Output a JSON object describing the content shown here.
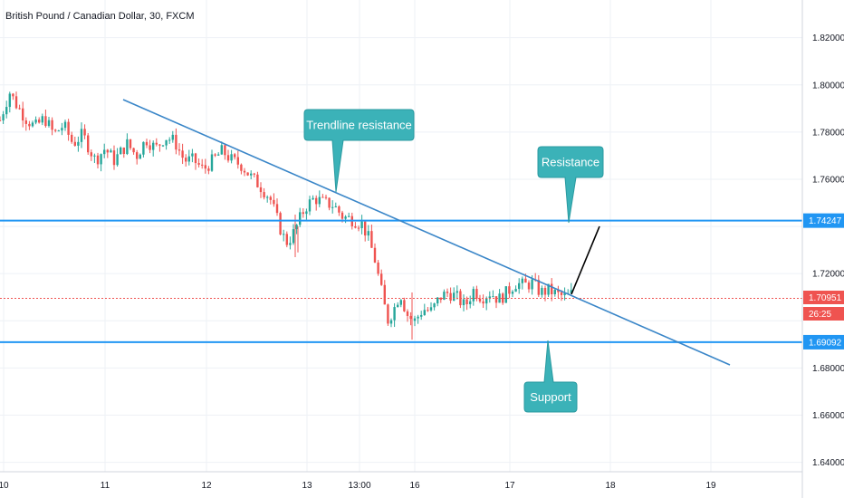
{
  "header": {
    "title": "British Pound / Canadian Dollar, 30, FXCM"
  },
  "colors": {
    "up": "#26a69a",
    "down": "#ef5350",
    "level": "#2196f3",
    "trend": "#3a86c8",
    "callout": "#3bb2b8",
    "grid": "#eef1f6"
  },
  "chart_data": {
    "type": "candlestick",
    "title": "British Pound / Canadian Dollar, 30, FXCM",
    "xlabel": "",
    "ylabel": "",
    "x_ticks": [
      "10",
      "11",
      "12",
      "13",
      "13:00",
      "16",
      "17",
      "18",
      "19"
    ],
    "y_ticks": [
      "1.82000",
      "1.80000",
      "1.78000",
      "1.76000",
      "1.72000",
      "1.68000",
      "1.66000",
      "1.64000"
    ],
    "ylim": [
      1.636,
      1.836
    ],
    "xlim": [
      0,
      13.5
    ],
    "grid": true,
    "price_path": [
      [
        0,
        1.785
      ],
      [
        0.3,
        1.797
      ],
      [
        0.5,
        1.792
      ],
      [
        0.8,
        1.786
      ],
      [
        1.1,
        1.782
      ],
      [
        1.4,
        1.786
      ],
      [
        1.7,
        1.779
      ],
      [
        2.0,
        1.783
      ],
      [
        2.3,
        1.775
      ],
      [
        2.6,
        1.779
      ],
      [
        3.0,
        1.768
      ],
      [
        3.3,
        1.773
      ],
      [
        3.6,
        1.768
      ],
      [
        4.0,
        1.775
      ],
      [
        4.3,
        1.77
      ],
      [
        4.6,
        1.777
      ],
      [
        4.9,
        1.773
      ],
      [
        5.2,
        1.778
      ],
      [
        5.5,
        1.776
      ],
      [
        5.8,
        1.768
      ],
      [
        6.1,
        1.768
      ],
      [
        6.4,
        1.764
      ],
      [
        6.7,
        1.768
      ],
      [
        7.0,
        1.772
      ],
      [
        7.3,
        1.768
      ],
      [
        7.6,
        1.766
      ],
      [
        7.9,
        1.761
      ],
      [
        8.2,
        1.757
      ],
      [
        8.5,
        1.752
      ],
      [
        8.8,
        1.74
      ],
      [
        9.0,
        1.733
      ],
      [
        9.2,
        1.736
      ],
      [
        9.4,
        1.742
      ],
      [
        9.6,
        1.748
      ],
      [
        9.9,
        1.752
      ],
      [
        10.2,
        1.75
      ],
      [
        10.5,
        1.749
      ],
      [
        10.8,
        1.744
      ],
      [
        11.1,
        1.743
      ],
      [
        11.4,
        1.741
      ],
      [
        11.6,
        1.735
      ],
      [
        11.8,
        1.726
      ],
      [
        12.0,
        1.713
      ],
      [
        12.2,
        1.7
      ],
      [
        12.4,
        1.705
      ],
      [
        12.6,
        1.712
      ],
      [
        12.8,
        1.703
      ],
      [
        13.0,
        1.7
      ]
    ],
    "price_path_2": [
      [
        0,
        1.7
      ],
      [
        0.4,
        1.705
      ],
      [
        0.8,
        1.704
      ],
      [
        1.2,
        1.71
      ],
      [
        1.6,
        1.712
      ],
      [
        2.0,
        1.71
      ],
      [
        2.4,
        1.706
      ],
      [
        2.8,
        1.713
      ],
      [
        3.2,
        1.71
      ],
      [
        3.6,
        1.712
      ],
      [
        4.0,
        1.709
      ],
      [
        4.4,
        1.712
      ],
      [
        4.8,
        1.716
      ],
      [
        5.2,
        1.715
      ],
      [
        5.6,
        1.716
      ],
      [
        6.0,
        1.712
      ],
      [
        6.4,
        1.713
      ],
      [
        6.8,
        1.711
      ],
      [
        7.2,
        1.71
      ],
      [
        7.6,
        1.712
      ]
    ],
    "resistance_level": 1.74247,
    "support_level": 1.69092,
    "current_price": 1.70951,
    "trendline": {
      "start": [
        1.2,
        1.794
      ],
      "end": [
        13.3,
        1.682
      ]
    },
    "annotations": [
      {
        "text": "Trendline resistance",
        "anchor": [
          5.6,
          1.757
        ]
      },
      {
        "text": "Resistance",
        "anchor": [
          9.7,
          1.743
        ]
      },
      {
        "text": "Support",
        "anchor": [
          9.2,
          1.69
        ]
      }
    ]
  },
  "price_labels": {
    "resistance": "1.74247",
    "current": "1.70951",
    "countdown": "26:25",
    "support": "1.69092"
  },
  "callouts": {
    "trendline": "Trendline resistance",
    "resistance": "Resistance",
    "support": "Support"
  }
}
